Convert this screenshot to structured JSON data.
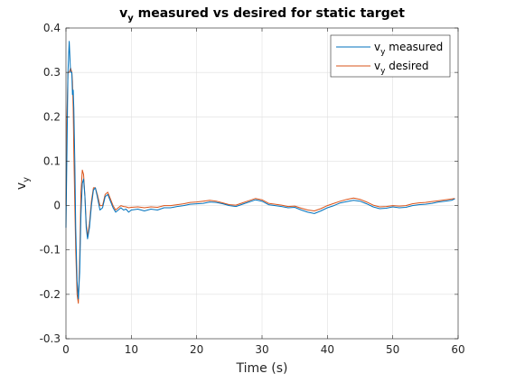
{
  "chart_data": {
    "type": "line",
    "title": {
      "main": "v",
      "sub": "y",
      "rest": " measured vs desired for static target"
    },
    "xlabel": "Time (s)",
    "ylabel": {
      "main": "v",
      "sub": "y"
    },
    "xlim": [
      0,
      60
    ],
    "ylim": [
      -0.3,
      0.4
    ],
    "xticks": [
      "0",
      "10",
      "20",
      "30",
      "40",
      "50",
      "60"
    ],
    "yticks": [
      "-0.3",
      "-0.2",
      "-0.1",
      "0",
      "0.1",
      "0.2",
      "0.3",
      "0.4"
    ],
    "grid": true,
    "legend_position": "top-right",
    "series": [
      {
        "name": {
          "main": "v",
          "sub": "y",
          "rest": " measured"
        },
        "color": "#0072bd",
        "x": [
          0,
          0.15,
          0.3,
          0.5,
          0.7,
          0.9,
          1.0,
          1.1,
          1.2,
          1.35,
          1.5,
          1.7,
          1.9,
          2.1,
          2.3,
          2.5,
          2.7,
          2.9,
          3.1,
          3.3,
          3.6,
          3.9,
          4.2,
          4.5,
          4.8,
          5.2,
          5.6,
          6.0,
          6.4,
          6.8,
          7.2,
          7.6,
          8.0,
          8.4,
          8.8,
          9.2,
          9.6,
          10,
          11,
          12,
          13,
          14,
          15,
          16,
          17,
          18,
          19,
          20,
          21,
          22,
          23,
          24,
          25,
          26,
          27,
          28,
          29,
          30,
          31,
          32,
          33,
          34,
          35,
          36,
          37,
          38,
          39,
          40,
          41,
          42,
          43,
          44,
          45,
          46,
          47,
          48,
          49,
          50,
          51,
          52,
          53,
          54,
          55,
          56,
          57,
          58,
          59,
          59.5
        ],
        "y": [
          -0.05,
          0.12,
          0.3,
          0.37,
          0.3,
          0.3,
          0.25,
          0.26,
          0.22,
          0.1,
          -0.05,
          -0.17,
          -0.21,
          -0.15,
          -0.02,
          0.05,
          0.06,
          0.02,
          -0.05,
          -0.075,
          -0.05,
          0.0,
          0.035,
          0.04,
          0.02,
          -0.01,
          -0.005,
          0.02,
          0.025,
          0.01,
          -0.005,
          -0.015,
          -0.01,
          -0.005,
          -0.01,
          -0.008,
          -0.015,
          -0.01,
          -0.008,
          -0.012,
          -0.008,
          -0.01,
          -0.005,
          -0.005,
          -0.002,
          0.0,
          0.003,
          0.004,
          0.005,
          0.008,
          0.007,
          0.004,
          0.0,
          -0.002,
          0.003,
          0.008,
          0.013,
          0.01,
          0.002,
          0.0,
          -0.002,
          -0.005,
          -0.004,
          -0.01,
          -0.015,
          -0.018,
          -0.012,
          -0.005,
          0.0,
          0.006,
          0.009,
          0.012,
          0.01,
          0.004,
          -0.003,
          -0.007,
          -0.006,
          -0.003,
          -0.005,
          -0.004,
          0.0,
          0.002,
          0.003,
          0.005,
          0.008,
          0.01,
          0.012,
          0.015
        ]
      },
      {
        "name": {
          "main": "v",
          "sub": "y",
          "rest": " desired"
        },
        "color": "#d95319",
        "x": [
          0,
          0.15,
          0.3,
          0.5,
          0.7,
          0.9,
          1.0,
          1.1,
          1.2,
          1.35,
          1.5,
          1.7,
          1.9,
          2.1,
          2.3,
          2.5,
          2.7,
          2.9,
          3.1,
          3.3,
          3.6,
          3.9,
          4.2,
          4.5,
          4.8,
          5.2,
          5.6,
          6.0,
          6.4,
          6.8,
          7.2,
          7.6,
          8.0,
          8.4,
          8.8,
          9.2,
          9.6,
          10,
          11,
          12,
          13,
          14,
          15,
          16,
          17,
          18,
          19,
          20,
          21,
          22,
          23,
          24,
          25,
          26,
          27,
          28,
          29,
          30,
          31,
          32,
          33,
          34,
          35,
          36,
          37,
          38,
          39,
          40,
          41,
          42,
          43,
          44,
          45,
          46,
          47,
          48,
          49,
          50,
          51,
          52,
          53,
          54,
          55,
          56,
          57,
          58,
          59,
          59.5
        ],
        "y": [
          0.0,
          0.2,
          0.3,
          0.3,
          0.31,
          0.3,
          0.28,
          0.22,
          0.12,
          0.0,
          -0.1,
          -0.2,
          -0.22,
          -0.12,
          0.03,
          0.08,
          0.07,
          0.02,
          -0.04,
          -0.07,
          -0.04,
          0.01,
          0.04,
          0.04,
          0.025,
          0.0,
          0.0,
          0.025,
          0.03,
          0.015,
          0.0,
          -0.01,
          -0.005,
          0.0,
          -0.002,
          -0.003,
          -0.005,
          -0.004,
          -0.003,
          -0.005,
          -0.003,
          -0.004,
          0.0,
          0.0,
          0.002,
          0.004,
          0.007,
          0.008,
          0.01,
          0.012,
          0.01,
          0.006,
          0.002,
          0.001,
          0.006,
          0.011,
          0.016,
          0.013,
          0.005,
          0.003,
          0.001,
          -0.002,
          -0.001,
          -0.006,
          -0.01,
          -0.012,
          -0.007,
          0.0,
          0.005,
          0.01,
          0.014,
          0.017,
          0.014,
          0.008,
          0.001,
          -0.003,
          -0.002,
          0.0,
          -0.001,
          0.0,
          0.004,
          0.006,
          0.007,
          0.009,
          0.011,
          0.013,
          0.015,
          0.016
        ]
      }
    ]
  }
}
